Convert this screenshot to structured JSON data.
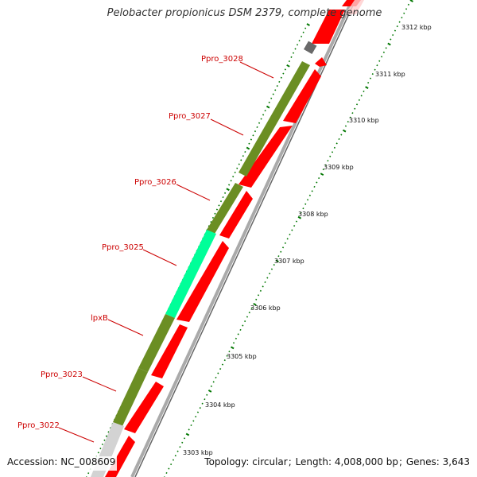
{
  "title": "Pelobacter propionicus DSM 2379, complete genome",
  "accession_label": "Accession:",
  "accession": "NC_008609",
  "topology_label": "Topology:",
  "topology": "circular",
  "length_label": "Length:",
  "length": "4,008,000 bp",
  "genes_label": "Genes:",
  "genes": "3,643",
  "colors": {
    "background": "#ffffff",
    "feature_olive": "#6b8e23",
    "feature_cyan": "#00ff99",
    "feature_gray": "#d3d3d3",
    "feature_darkgray": "#696969",
    "cds_red": "#ff0000",
    "backbone": "#999999",
    "ticks_green": "#007700",
    "label_red": "#cc0000"
  },
  "genes_ring": [
    {
      "label": "Ppro_3028",
      "color": "olive"
    },
    {
      "label": "Ppro_3027",
      "color": "olive"
    },
    {
      "label": "Ppro_3026",
      "color": "olive"
    },
    {
      "label": "Ppro_3025",
      "color": "cyan"
    },
    {
      "label": "lpxB",
      "color": "olive"
    },
    {
      "label": "Ppro_3023",
      "color": "olive"
    },
    {
      "label": "Ppro_3022",
      "color": "gray"
    }
  ],
  "kbp_ticks": [
    "3312 kbp",
    "3311 kbp",
    "3310 kbp",
    "3309 kbp",
    "3308 kbp",
    "3307 kbp",
    "3306 kbp",
    "3305 kbp",
    "3304 kbp",
    "3303 kbp"
  ]
}
